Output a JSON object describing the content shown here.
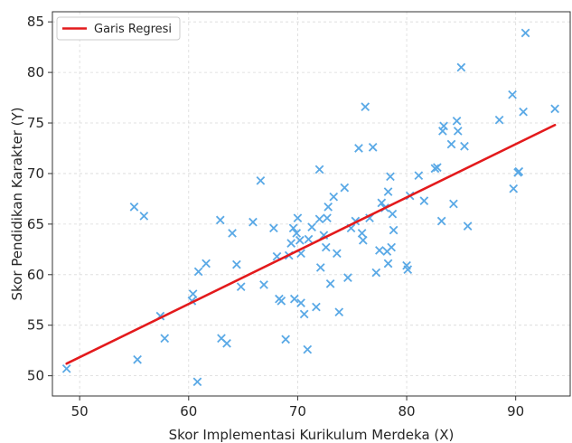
{
  "chart_data": {
    "type": "scatter",
    "xlabel": "Skor Implementasi Kurikulum Merdeka (X)",
    "ylabel": "Skor Pendidikan Karakter (Y)",
    "xlim": [
      47.5,
      95
    ],
    "ylim": [
      48,
      86
    ],
    "xticks": [
      50,
      60,
      70,
      80,
      90
    ],
    "yticks": [
      50,
      55,
      60,
      65,
      70,
      75,
      80,
      85
    ],
    "grid": true,
    "legend": {
      "position": "top-left",
      "entries": [
        "Garis Regresi"
      ]
    },
    "regression_line": {
      "name": "Garis Regresi",
      "color": "#e31a1c",
      "x": [
        48.8,
        93.6
      ],
      "y": [
        51.2,
        74.8
      ]
    },
    "points": {
      "color": "#5aa9e6",
      "marker": "x",
      "x": [
        48.8,
        55.0,
        55.3,
        55.9,
        57.4,
        57.8,
        60.3,
        60.4,
        60.8,
        60.9,
        61.6,
        62.9,
        63.0,
        63.5,
        64.0,
        64.4,
        64.8,
        65.9,
        66.6,
        66.9,
        67.8,
        68.1,
        68.3,
        68.5,
        68.9,
        69.2,
        69.4,
        69.6,
        69.7,
        69.9,
        70.0,
        70.2,
        70.3,
        70.3,
        70.6,
        70.9,
        71.0,
        71.3,
        71.7,
        72.0,
        72.0,
        72.1,
        72.4,
        72.6,
        72.7,
        72.8,
        73.0,
        73.3,
        73.6,
        73.8,
        74.3,
        74.6,
        74.9,
        75.3,
        75.6,
        75.9,
        76.0,
        76.2,
        76.6,
        76.9,
        77.2,
        77.5,
        77.7,
        78.0,
        78.2,
        78.3,
        78.3,
        78.5,
        78.6,
        78.7,
        78.8,
        80.0,
        80.1,
        80.3,
        81.1,
        81.6,
        82.6,
        82.8,
        83.2,
        83.3,
        83.4,
        84.1,
        84.3,
        84.6,
        84.7,
        85.0,
        85.3,
        85.6,
        88.5,
        89.7,
        89.8,
        90.2,
        90.3,
        90.7,
        90.9,
        93.6
      ],
      "y": [
        50.7,
        66.7,
        51.6,
        65.8,
        55.9,
        53.7,
        57.4,
        58.1,
        49.4,
        60.3,
        61.1,
        65.4,
        53.7,
        53.2,
        64.1,
        61.0,
        58.8,
        65.2,
        69.3,
        59.0,
        64.6,
        61.8,
        57.6,
        57.4,
        53.6,
        61.9,
        63.1,
        64.6,
        57.6,
        64.1,
        65.6,
        63.4,
        57.2,
        62.1,
        56.1,
        52.6,
        63.5,
        64.7,
        56.8,
        65.5,
        70.4,
        60.7,
        63.9,
        62.7,
        65.6,
        66.7,
        59.1,
        67.7,
        62.1,
        56.3,
        68.6,
        59.7,
        64.6,
        65.3,
        72.5,
        64.1,
        63.4,
        76.6,
        65.6,
        72.6,
        60.2,
        62.4,
        67.1,
        66.6,
        62.3,
        61.1,
        68.2,
        69.7,
        62.7,
        66.0,
        64.4,
        60.9,
        60.5,
        67.8,
        69.8,
        67.3,
        70.5,
        70.6,
        65.3,
        74.2,
        74.7,
        72.9,
        67.0,
        75.2,
        74.2,
        80.5,
        72.7,
        64.8,
        75.3,
        77.8,
        68.5,
        70.1,
        70.2,
        76.1,
        83.9,
        76.4
      ]
    }
  }
}
